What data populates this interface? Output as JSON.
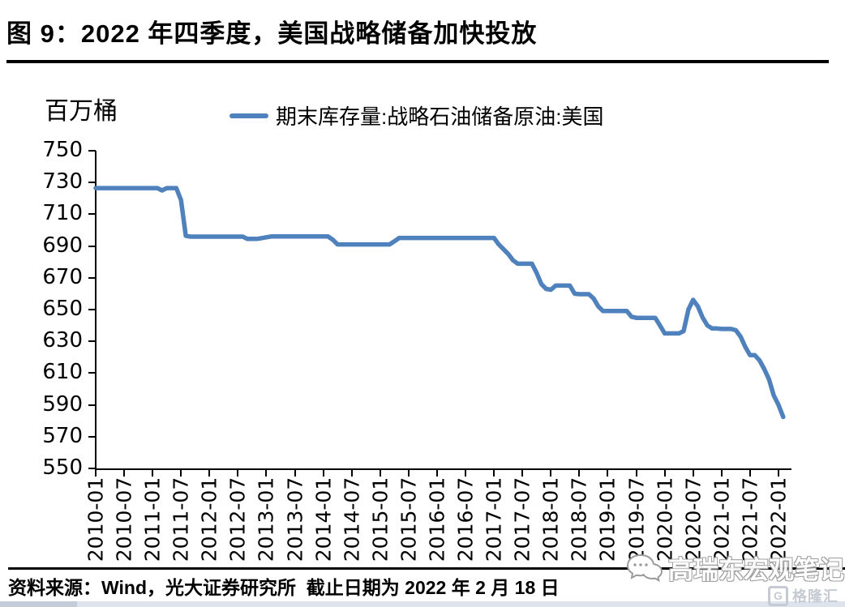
{
  "figure": {
    "title": "图 9：2022 年四季度，美国战略储备加快投放",
    "unit_label": "百万桶",
    "source_note": "资料来源：Wind，光大证券研究所  截止日期为 2022 年 2 月 18 日",
    "watermark_text": "高瑞东宏观笔记",
    "logo_text": "格隆汇",
    "logo_icon_letter": "G"
  },
  "chart_data": {
    "type": "line",
    "title": "图 9：2022 年四季度，美国战略储备加快投放",
    "xlabel": "",
    "ylabel": "百万桶",
    "ylim": [
      550,
      750
    ],
    "grid": false,
    "legend_position": "top-center",
    "yticks": [
      750,
      730,
      710,
      690,
      670,
      650,
      630,
      610,
      590,
      570,
      550
    ],
    "xticks": [
      "2010-01",
      "2010-07",
      "2011-01",
      "2011-07",
      "2012-01",
      "2012-07",
      "2013-01",
      "2013-07",
      "2014-01",
      "2014-07",
      "2015-01",
      "2015-07",
      "2016-01",
      "2016-07",
      "2017-01",
      "2017-07",
      "2018-01",
      "2018-07",
      "2019-01",
      "2019-07",
      "2020-01",
      "2020-07",
      "2021-01",
      "2021-07",
      "2022-01"
    ],
    "x_start": "2010-01",
    "x_frequency": "monthly",
    "x_end": "2022-02",
    "series": [
      {
        "name": "期末库存量:战略石油储备原油:美国",
        "color": "#4F81BD",
        "monthly_values": [
          726.5,
          726.5,
          726.5,
          726.5,
          726.5,
          726.5,
          726.5,
          726.5,
          726.5,
          726.5,
          726.5,
          726.5,
          726.5,
          726.5,
          725.0,
          726.5,
          726.5,
          726.5,
          719.0,
          696.5,
          695.9,
          695.9,
          695.9,
          695.9,
          695.9,
          695.9,
          695.9,
          695.9,
          695.9,
          695.9,
          695.9,
          695.9,
          694.5,
          694.5,
          694.5,
          695.0,
          695.5,
          696.0,
          696.0,
          696.0,
          696.0,
          696.0,
          696.0,
          696.0,
          696.0,
          696.0,
          696.0,
          696.0,
          696.0,
          696.0,
          694.0,
          691.0,
          691.0,
          691.0,
          691.0,
          691.0,
          691.0,
          691.0,
          691.0,
          691.0,
          691.0,
          691.0,
          691.0,
          693.0,
          695.1,
          695.1,
          695.1,
          695.1,
          695.1,
          695.1,
          695.1,
          695.1,
          695.1,
          695.1,
          695.1,
          695.1,
          695.1,
          695.1,
          695.1,
          695.1,
          695.1,
          695.1,
          695.1,
          695.1,
          695.1,
          691.0,
          688.0,
          685.0,
          681.0,
          678.9,
          678.9,
          678.9,
          678.9,
          673.0,
          666.0,
          663.0,
          662.5,
          665.1,
          665.1,
          665.1,
          665.1,
          660.0,
          659.7,
          659.7,
          659.7,
          657.0,
          652.0,
          649.1,
          649.1,
          649.1,
          649.1,
          649.1,
          649.1,
          645.5,
          644.8,
          644.8,
          644.8,
          644.8,
          644.8,
          640.0,
          635.0,
          635.0,
          635.0,
          635.0,
          636.5,
          650.0,
          656.1,
          652.0,
          645.0,
          640.0,
          638.1,
          638.1,
          637.8,
          637.8,
          637.8,
          637.0,
          633.0,
          626.5,
          621.3,
          621.3,
          618.0,
          612.5,
          606.0,
          596.0,
          590.0,
          582.4
        ]
      }
    ]
  }
}
